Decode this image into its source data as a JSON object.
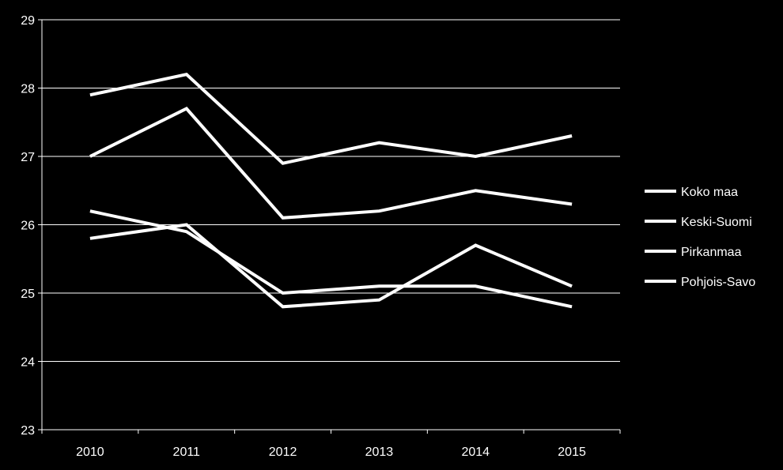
{
  "chart_data": {
    "type": "line",
    "title": "",
    "xlabel": "",
    "ylabel": "",
    "x": [
      "2010",
      "2011",
      "2012",
      "2013",
      "2014",
      "2015"
    ],
    "ylim": [
      23,
      29
    ],
    "yticks": [
      "23",
      "24",
      "25",
      "26",
      "27",
      "28",
      "29"
    ],
    "grid": true,
    "legend_position": "right",
    "colors": {
      "background": "#000000",
      "line": "#ffffff",
      "grid": "#ffffff"
    },
    "series": [
      {
        "name": "Koko maa",
        "values": [
          27.9,
          28.2,
          26.9,
          27.2,
          27.0,
          27.3
        ]
      },
      {
        "name": "Keski-Suomi",
        "values": [
          27.0,
          27.7,
          26.1,
          26.2,
          26.5,
          26.3
        ]
      },
      {
        "name": "Pirkanmaa",
        "values": [
          26.2,
          25.9,
          25.0,
          25.1,
          25.1,
          24.8
        ]
      },
      {
        "name": "Pohjois-Savo",
        "values": [
          25.8,
          26.0,
          24.8,
          24.9,
          25.7,
          25.1
        ]
      }
    ]
  }
}
